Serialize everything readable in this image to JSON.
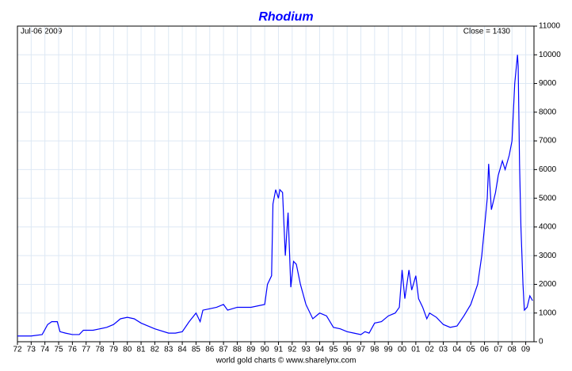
{
  "chart_data": {
    "type": "line",
    "title": "Rhodium",
    "annotations": {
      "date": "Jul-06 2009",
      "close": "Close = 1430",
      "source": "world gold charts © www.sharelynx.com"
    },
    "x": [
      1972,
      1973,
      1973.8,
      1974.2,
      1974.5,
      1974.9,
      1975.1,
      1975.5,
      1976,
      1976.5,
      1976.8,
      1977.5,
      1978,
      1978.5,
      1979,
      1979.5,
      1980,
      1980.5,
      1981,
      1982,
      1983,
      1983.5,
      1984,
      1984.5,
      1985,
      1985.3,
      1985.5,
      1986,
      1986.5,
      1987,
      1987.3,
      1988,
      1989,
      1990,
      1990.2,
      1990.5,
      1990.6,
      1990.8,
      1991,
      1991.1,
      1991.3,
      1991.5,
      1991.7,
      1991.9,
      1992.1,
      1992.3,
      1992.6,
      1993,
      1993.5,
      1994,
      1994.5,
      1995,
      1995.5,
      1996,
      1996.5,
      1997,
      1997.3,
      1997.6,
      1998,
      1998.5,
      1999,
      1999.5,
      1999.8,
      2000,
      2000.2,
      2000.5,
      2000.7,
      2001,
      2001.2,
      2001.5,
      2001.8,
      2002,
      2002.5,
      2003,
      2003.5,
      2004,
      2004.5,
      2005,
      2005.5,
      2005.8,
      2006.2,
      2006.3,
      2006.5,
      2006.8,
      2007,
      2007.3,
      2007.5,
      2007.8,
      2008,
      2008.2,
      2008.4,
      2008.45,
      2008.55,
      2008.65,
      2008.8,
      2008.9,
      2009.1,
      2009.3,
      2009.5
    ],
    "series": [
      {
        "name": "Rhodium",
        "color": "#0000ff",
        "values": [
          200,
          200,
          250,
          600,
          700,
          700,
          350,
          300,
          250,
          250,
          400,
          400,
          450,
          500,
          600,
          800,
          850,
          800,
          650,
          450,
          300,
          300,
          350,
          700,
          1000,
          700,
          1100,
          1150,
          1200,
          1300,
          1100,
          1200,
          1200,
          1300,
          2000,
          2300,
          4800,
          5300,
          5000,
          5300,
          5200,
          3000,
          4500,
          1900,
          2800,
          2700,
          2000,
          1300,
          800,
          1000,
          900,
          500,
          450,
          350,
          300,
          250,
          350,
          300,
          650,
          700,
          900,
          1000,
          1200,
          2500,
          1500,
          2500,
          1800,
          2300,
          1500,
          1200,
          800,
          1000,
          850,
          600,
          500,
          550,
          900,
          1300,
          2000,
          3000,
          5000,
          6200,
          4600,
          5200,
          5800,
          6300,
          6000,
          6500,
          7000,
          9000,
          10000,
          9600,
          6200,
          4000,
          2000,
          1100,
          1200,
          1600,
          1430
        ]
      }
    ],
    "xlim": [
      1972,
      2009.6
    ],
    "ylim": [
      0,
      11000
    ],
    "yticks": [
      0,
      1000,
      2000,
      3000,
      4000,
      5000,
      6000,
      7000,
      8000,
      9000,
      10000,
      11000
    ],
    "xticks": [
      {
        "value": 1972,
        "label": "72"
      },
      {
        "value": 1973,
        "label": "73"
      },
      {
        "value": 1974,
        "label": "74"
      },
      {
        "value": 1975,
        "label": "75"
      },
      {
        "value": 1976,
        "label": "76"
      },
      {
        "value": 1977,
        "label": "77"
      },
      {
        "value": 1978,
        "label": "78"
      },
      {
        "value": 1979,
        "label": "79"
      },
      {
        "value": 1980,
        "label": "80"
      },
      {
        "value": 1981,
        "label": "81"
      },
      {
        "value": 1982,
        "label": "82"
      },
      {
        "value": 1983,
        "label": "83"
      },
      {
        "value": 1984,
        "label": "84"
      },
      {
        "value": 1985,
        "label": "85"
      },
      {
        "value": 1986,
        "label": "86"
      },
      {
        "value": 1987,
        "label": "87"
      },
      {
        "value": 1988,
        "label": "88"
      },
      {
        "value": 1989,
        "label": "89"
      },
      {
        "value": 1990,
        "label": "90"
      },
      {
        "value": 1991,
        "label": "91"
      },
      {
        "value": 1992,
        "label": "92"
      },
      {
        "value": 1993,
        "label": "93"
      },
      {
        "value": 1994,
        "label": "94"
      },
      {
        "value": 1995,
        "label": "95"
      },
      {
        "value": 1996,
        "label": "96"
      },
      {
        "value": 1997,
        "label": "97"
      },
      {
        "value": 1998,
        "label": "98"
      },
      {
        "value": 1999,
        "label": "99"
      },
      {
        "value": 2000,
        "label": "00"
      },
      {
        "value": 2001,
        "label": "01"
      },
      {
        "value": 2002,
        "label": "02"
      },
      {
        "value": 2003,
        "label": "03"
      },
      {
        "value": 2004,
        "label": "04"
      },
      {
        "value": 2005,
        "label": "05"
      },
      {
        "value": 2006,
        "label": "06"
      },
      {
        "value": 2007,
        "label": "07"
      },
      {
        "value": 2008,
        "label": "08"
      },
      {
        "value": 2009,
        "label": "09"
      }
    ],
    "grid": true
  }
}
